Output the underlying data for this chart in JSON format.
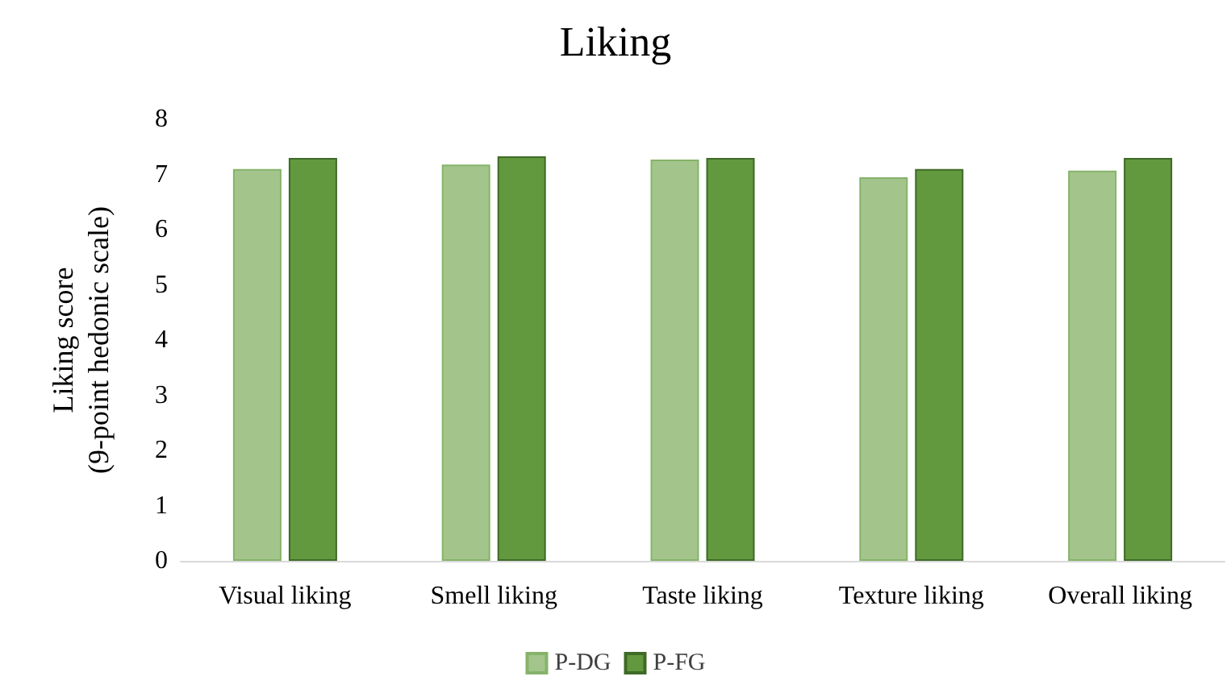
{
  "chart_data": {
    "type": "bar",
    "title": "Liking",
    "ylabel": "Liking score\n(9-point hedonic scale)",
    "categories": [
      "Visual liking",
      "Smell liking",
      "Taste liking",
      "Texture liking",
      "Overall liking"
    ],
    "series": [
      {
        "name": "P-DG",
        "color": "#a3c58c",
        "values": [
          7.1,
          7.18,
          7.27,
          6.95,
          7.07
        ]
      },
      {
        "name": "P-FG",
        "color": "#62993e",
        "values": [
          7.3,
          7.33,
          7.3,
          7.1,
          7.3
        ]
      }
    ],
    "ylim": [
      0,
      8
    ],
    "yticks": [
      0,
      1,
      2,
      3,
      4,
      5,
      6,
      7,
      8
    ],
    "grid": false,
    "legend": "bottom"
  }
}
